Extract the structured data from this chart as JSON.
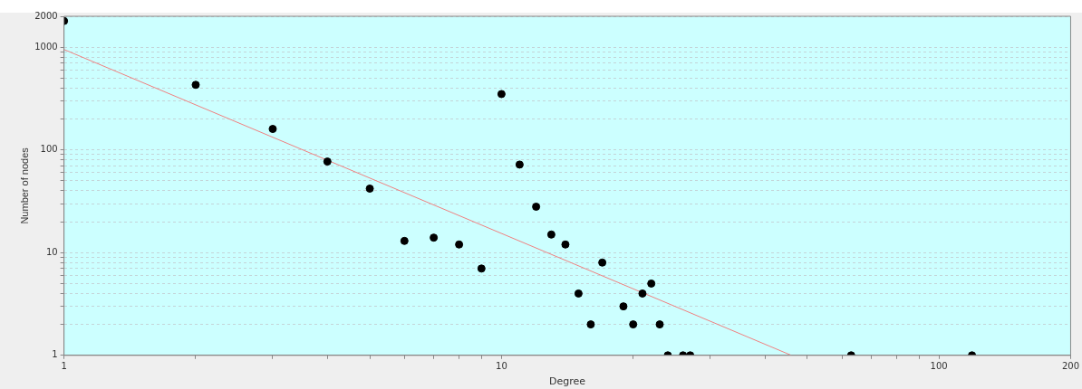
{
  "chart_data": {
    "type": "scatter",
    "xlabel": "Degree",
    "ylabel": "Number of nodes",
    "log": "xy",
    "grid": "y",
    "marker": "circle",
    "xlim": [
      1,
      200
    ],
    "ylim": [
      1,
      2000
    ],
    "xticks": [
      1,
      {
        "value": 2,
        "label": null
      },
      {
        "value": 3,
        "label": null
      },
      {
        "value": 4,
        "label": null
      },
      {
        "value": 5,
        "label": null
      },
      {
        "value": 6,
        "label": null
      },
      {
        "value": 7,
        "label": null
      },
      {
        "value": 8,
        "label": null
      },
      {
        "value": 9,
        "label": null
      },
      10,
      {
        "value": 20,
        "label": null
      },
      {
        "value": 30,
        "label": null
      },
      {
        "value": 40,
        "label": null
      },
      {
        "value": 50,
        "label": null
      },
      {
        "value": 60,
        "label": null
      },
      {
        "value": 70,
        "label": null
      },
      {
        "value": 80,
        "label": null
      },
      {
        "value": 90,
        "label": null
      },
      100,
      200
    ],
    "yticks": [
      1,
      {
        "value": 2,
        "label": null
      },
      {
        "value": 3,
        "label": null
      },
      {
        "value": 4,
        "label": null
      },
      {
        "value": 5,
        "label": null
      },
      {
        "value": 6,
        "label": null
      },
      {
        "value": 7,
        "label": null
      },
      {
        "value": 8,
        "label": null
      },
      {
        "value": 9,
        "label": null
      },
      10,
      {
        "value": 20,
        "label": null
      },
      {
        "value": 30,
        "label": null
      },
      {
        "value": 40,
        "label": null
      },
      {
        "value": 50,
        "label": null
      },
      {
        "value": 60,
        "label": null
      },
      {
        "value": 70,
        "label": null
      },
      {
        "value": 80,
        "label": null
      },
      {
        "value": 90,
        "label": null
      },
      100,
      {
        "value": 200,
        "label": null
      },
      {
        "value": 300,
        "label": null
      },
      {
        "value": 400,
        "label": null
      },
      {
        "value": 500,
        "label": null
      },
      {
        "value": 600,
        "label": null
      },
      {
        "value": 700,
        "label": null
      },
      {
        "value": 800,
        "label": null
      },
      {
        "value": 900,
        "label": null
      },
      1000,
      2000
    ],
    "series": [
      {
        "color": "#000000",
        "x": [
          1,
          2,
          3,
          4,
          5,
          6,
          7,
          8,
          9,
          10,
          11,
          12,
          13,
          14,
          15,
          16,
          17,
          19,
          20,
          21,
          22,
          23,
          24,
          26,
          27,
          63,
          119
        ],
        "values": [
          1800,
          430,
          160,
          77,
          42,
          13,
          14,
          12,
          7,
          350,
          72,
          28,
          15,
          12,
          4,
          2,
          8,
          3,
          2,
          4,
          5,
          2,
          1,
          1,
          1,
          1,
          1
        ]
      },
      {
        "type": "line",
        "color": "#f08080",
        "marker": "none",
        "x": [
          1,
          46
        ],
        "values": [
          950,
          1
        ]
      }
    ]
  }
}
